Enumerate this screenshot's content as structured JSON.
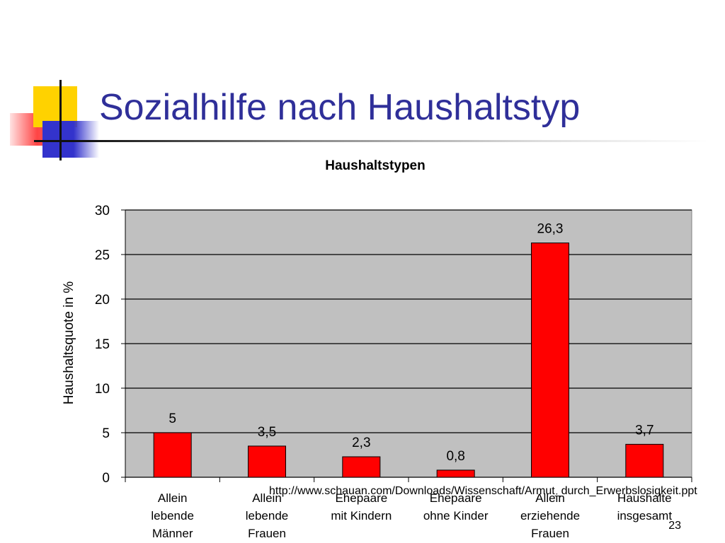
{
  "slide": {
    "title": "Sozialhilfe nach Haushaltstyp",
    "footer_url": "http://www.schauan.com/Downloads/Wissenschaft/Armut_durch_Erwerbslosigkeit.ppt",
    "page_number": "23"
  },
  "colors": {
    "title": "#2f2f99",
    "bar": "#ff0000",
    "plot_background": "#c0c0c0"
  },
  "chart_data": {
    "type": "bar",
    "title": "Haushaltstypen",
    "ylabel": "Haushaltsquote in %",
    "xlabel": "",
    "ylim": [
      0,
      30
    ],
    "yticks": [
      0,
      5,
      10,
      15,
      20,
      25,
      30
    ],
    "grid": true,
    "categories": [
      "Allein lebende Männer",
      "Allein lebende Frauen",
      "Ehepaare mit Kindern",
      "Ehepaare ohne Kinder",
      "Allein erziehende Frauen",
      "Haushalte insgesamt"
    ],
    "category_lines": [
      [
        "Allein",
        "lebende",
        "Männer"
      ],
      [
        "Allein",
        "lebende",
        "Frauen"
      ],
      [
        "Ehepaare",
        "mit Kindern"
      ],
      [
        "Ehepaare",
        "ohne Kinder"
      ],
      [
        "Allein",
        "erziehende",
        "Frauen"
      ],
      [
        "Haushalte",
        "insgesamt"
      ]
    ],
    "values": [
      5,
      3.5,
      2.3,
      0.8,
      26.3,
      3.7
    ],
    "data_labels": [
      "5",
      "3,5",
      "2,3",
      "0,8",
      "26,3",
      "3,7"
    ]
  }
}
